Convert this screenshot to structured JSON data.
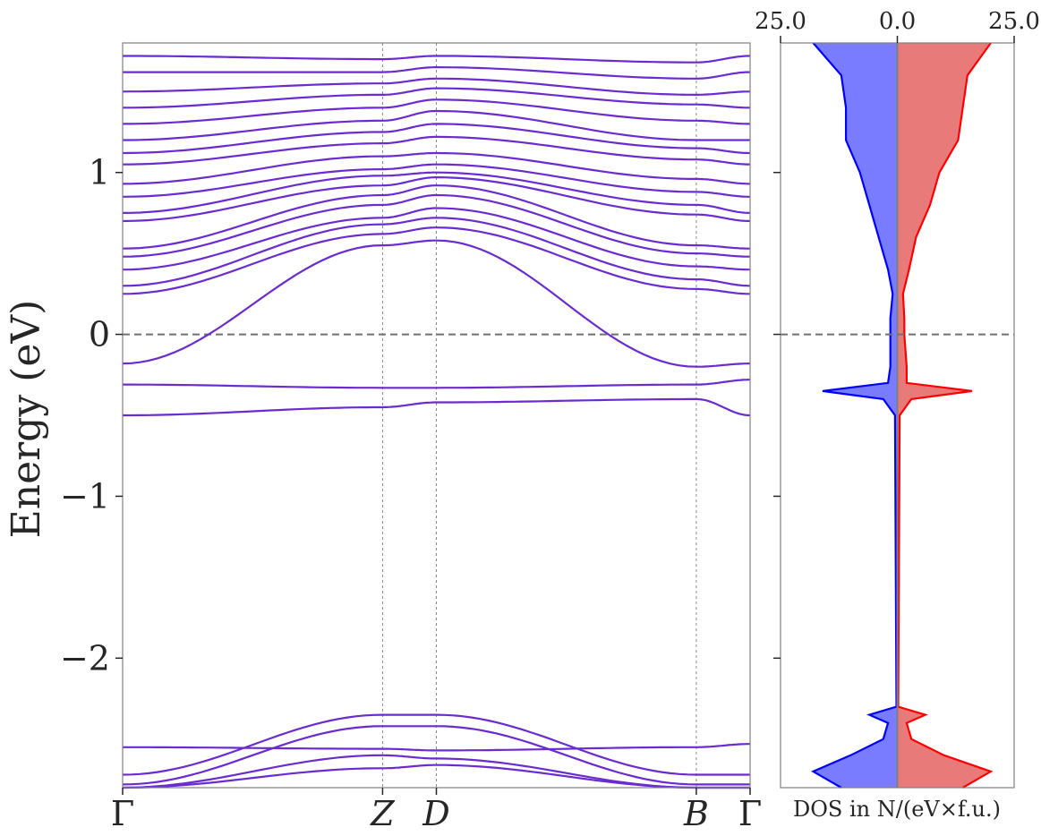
{
  "chart_data": [
    {
      "type": "line",
      "subtype": "band-structure",
      "ylabel": "Energy (eV)",
      "xlabel": "",
      "ylim": [
        -2.8,
        1.8
      ],
      "yticks": [
        "1",
        "0",
        "−1",
        "−2"
      ],
      "ytick_values": [
        1,
        0,
        -1,
        -2
      ],
      "kpoints": [
        {
          "label": "Γ",
          "pos": 0.0
        },
        {
          "label": "Z",
          "pos": 0.4143
        },
        {
          "label": "D",
          "pos": 0.5
        },
        {
          "label": "B",
          "pos": 0.9143
        },
        {
          "label": "Γ",
          "pos": 1.0
        }
      ],
      "grid": false,
      "fermi_level": 0.0,
      "band_color": "#6a2bd0",
      "bands_note_values_eV_at_kpoints": [
        [
          -0.5,
          -0.45,
          -0.42,
          -0.4,
          -0.5
        ],
        [
          -0.31,
          -0.33,
          -0.33,
          -0.31,
          -0.28
        ],
        [
          -0.18,
          0.55,
          0.58,
          -0.2,
          -0.18
        ],
        [
          0.25,
          0.62,
          0.66,
          0.28,
          0.25
        ],
        [
          0.3,
          0.68,
          0.72,
          0.34,
          0.3
        ],
        [
          0.4,
          0.72,
          0.78,
          0.42,
          0.4
        ],
        [
          0.48,
          0.8,
          0.86,
          0.5,
          0.48
        ],
        [
          0.53,
          0.86,
          0.92,
          0.55,
          0.53
        ],
        [
          0.7,
          0.92,
          0.97,
          0.74,
          0.7
        ],
        [
          0.75,
          0.98,
          1.0,
          0.8,
          0.75
        ],
        [
          0.85,
          1.02,
          1.05,
          0.88,
          0.85
        ],
        [
          0.93,
          1.1,
          1.12,
          0.96,
          0.93
        ],
        [
          1.05,
          1.18,
          1.22,
          1.08,
          1.05
        ],
        [
          1.12,
          1.25,
          1.3,
          1.15,
          1.12
        ],
        [
          1.2,
          1.32,
          1.38,
          1.2,
          1.2
        ],
        [
          1.3,
          1.4,
          1.45,
          1.32,
          1.3
        ],
        [
          1.4,
          1.48,
          1.52,
          1.42,
          1.4
        ],
        [
          1.5,
          1.55,
          1.58,
          1.48,
          1.5
        ],
        [
          1.62,
          1.62,
          1.65,
          1.58,
          1.62
        ],
        [
          1.72,
          1.7,
          1.72,
          1.68,
          1.72
        ],
        [
          -2.55,
          -2.56,
          -2.57,
          -2.55,
          -2.53
        ],
        [
          -2.72,
          -2.35,
          -2.35,
          -2.72,
          -2.72
        ],
        [
          -2.78,
          -2.42,
          -2.42,
          -2.78,
          -2.78
        ],
        [
          -2.8,
          -2.6,
          -2.62,
          -2.8,
          -2.8
        ],
        [
          -2.8,
          -2.68,
          -2.66,
          -2.8,
          -2.8
        ]
      ]
    },
    {
      "type": "area",
      "subtype": "spin-resolved-dos",
      "xlabel": "DOS in N/(eV×f.u.)",
      "xlim": [
        -25.0,
        25.0
      ],
      "xticks": [
        "25.0",
        "0.0",
        "25.0"
      ],
      "xtick_values": [
        -25,
        0,
        25
      ],
      "ylim": [
        -2.8,
        1.8
      ],
      "fermi_level": 0.0,
      "series": [
        {
          "name_hidden": true,
          "spin": "down",
          "side": "left",
          "line_color": "#0000ff",
          "fill_color": "#7a7cff",
          "energy": [
            1.8,
            1.6,
            1.4,
            1.2,
            1.0,
            0.8,
            0.6,
            0.4,
            0.25,
            0.1,
            0.0,
            -0.2,
            -0.3,
            -0.35,
            -0.4,
            -0.5,
            -2.3,
            -2.35,
            -2.4,
            -2.5,
            -2.6,
            -2.7,
            -2.8
          ],
          "dos": [
            18,
            12,
            11,
            11,
            8,
            6,
            4,
            2,
            1,
            1.5,
            1.5,
            1.5,
            2,
            16,
            3,
            0.5,
            0.2,
            6,
            2,
            3,
            10,
            18,
            12
          ]
        },
        {
          "name_hidden": true,
          "spin": "up",
          "side": "right",
          "line_color": "#ff0000",
          "fill_color": "#e87a7a",
          "energy": [
            1.8,
            1.6,
            1.4,
            1.2,
            1.0,
            0.8,
            0.6,
            0.4,
            0.25,
            0.1,
            0.0,
            -0.2,
            -0.3,
            -0.35,
            -0.4,
            -0.5,
            -2.3,
            -2.35,
            -2.4,
            -2.5,
            -2.6,
            -2.7,
            -2.8
          ],
          "dos": [
            20,
            15,
            14,
            13,
            9,
            7,
            4,
            2.5,
            1.2,
            1.5,
            1.5,
            2,
            2,
            16,
            3,
            0.5,
            0.2,
            6,
            2,
            3,
            10,
            20,
            14
          ]
        }
      ]
    }
  ]
}
